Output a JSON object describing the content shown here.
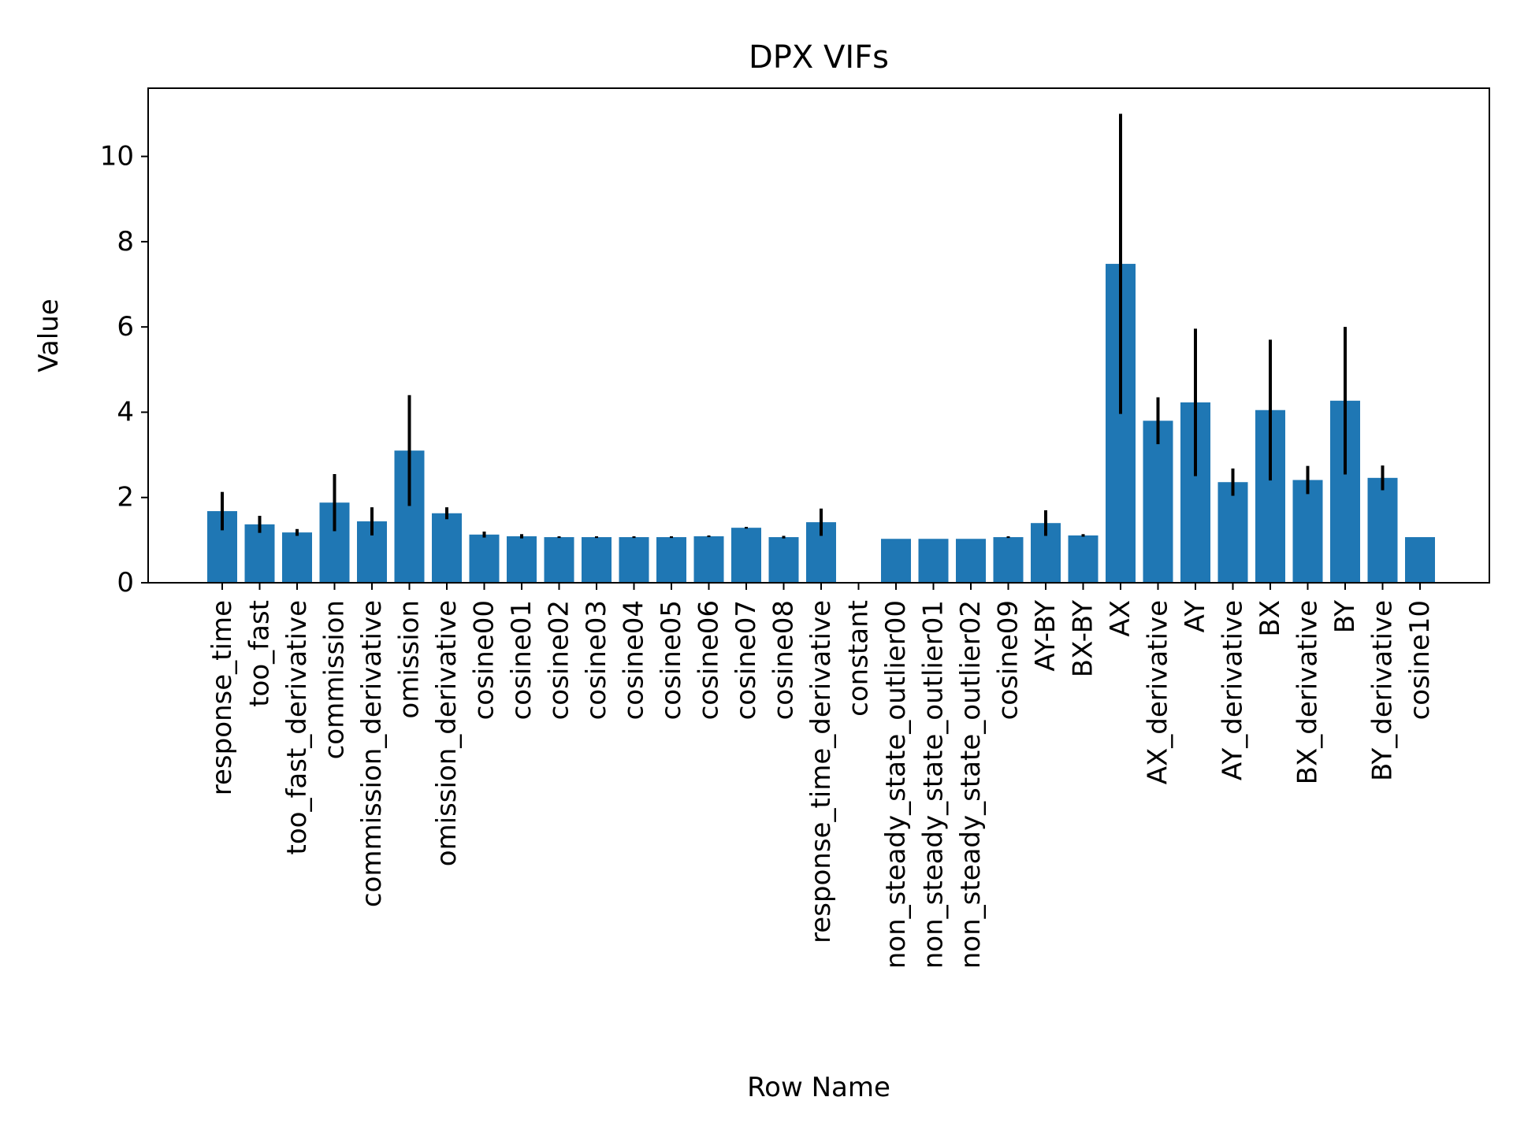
{
  "chart_data": {
    "type": "bar",
    "title": "DPX VIFs",
    "xlabel": "Row Name",
    "ylabel": "Value",
    "ylim": [
      0,
      11.6
    ],
    "yticks": [
      0,
      2,
      4,
      6,
      8,
      10
    ],
    "grid": false,
    "bar_color": "#1f77b4",
    "error_color": "#000000",
    "categories": [
      "response_time",
      "too_fast",
      "too_fast_derivative",
      "commission",
      "commission_derivative",
      "omission",
      "omission_derivative",
      "cosine00",
      "cosine01",
      "cosine02",
      "cosine03",
      "cosine04",
      "cosine05",
      "cosine06",
      "cosine07",
      "cosine08",
      "response_time_derivative",
      "constant",
      "non_steady_state_outlier00",
      "non_steady_state_outlier01",
      "non_steady_state_outlier02",
      "cosine09",
      "AY-BY",
      "BX-BY",
      "AX",
      "AX_derivative",
      "AY",
      "AY_derivative",
      "BX",
      "BX_derivative",
      "BY",
      "BY_derivative",
      "cosine10"
    ],
    "values": [
      1.68,
      1.37,
      1.18,
      1.88,
      1.44,
      3.1,
      1.63,
      1.13,
      1.09,
      1.07,
      1.07,
      1.07,
      1.07,
      1.09,
      1.29,
      1.07,
      1.42,
      0,
      1.03,
      1.03,
      1.03,
      1.07,
      1.4,
      1.11,
      7.48,
      3.8,
      4.23,
      2.36,
      4.05,
      2.41,
      4.27,
      2.46,
      1.07
    ],
    "errors": [
      0.45,
      0.2,
      0.08,
      0.67,
      0.33,
      1.3,
      0.14,
      0.07,
      0.05,
      0.02,
      0.02,
      0.02,
      0.02,
      0.02,
      0.02,
      0.03,
      0.32,
      0,
      0,
      0,
      0,
      0.02,
      0.3,
      0.03,
      3.52,
      0.55,
      1.73,
      0.32,
      1.65,
      0.33,
      1.73,
      0.29,
      0
    ]
  }
}
